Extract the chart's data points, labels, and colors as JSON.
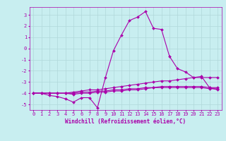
{
  "xlabel": "Windchill (Refroidissement éolien,°C)",
  "bg_color": "#c8eef0",
  "line_color": "#aa00aa",
  "grid_color": "#b0d8da",
  "xlim": [
    -0.5,
    23.5
  ],
  "ylim": [
    -5.5,
    3.7
  ],
  "yticks": [
    -5,
    -4,
    -3,
    -2,
    -1,
    0,
    1,
    2,
    3
  ],
  "xticks": [
    0,
    1,
    2,
    3,
    4,
    5,
    6,
    7,
    8,
    9,
    10,
    11,
    12,
    13,
    14,
    15,
    16,
    17,
    18,
    19,
    20,
    21,
    22,
    23
  ],
  "series": [
    [
      -4.0,
      -4.0,
      -4.2,
      -4.3,
      -4.5,
      -4.8,
      -4.4,
      -4.4,
      -5.3,
      -2.6,
      -0.2,
      1.2,
      2.5,
      2.8,
      3.3,
      1.8,
      1.7,
      -0.7,
      -1.8,
      -2.1,
      -2.6,
      -2.5,
      -3.5,
      -3.7
    ],
    [
      -4.0,
      -4.0,
      -4.0,
      -4.0,
      -4.0,
      -3.9,
      -3.8,
      -3.7,
      -3.7,
      -3.6,
      -3.5,
      -3.4,
      -3.3,
      -3.2,
      -3.1,
      -3.0,
      -2.9,
      -2.9,
      -2.8,
      -2.7,
      -2.6,
      -2.6,
      -2.6,
      -2.6
    ],
    [
      -4.0,
      -4.0,
      -4.0,
      -4.0,
      -4.0,
      -4.0,
      -3.9,
      -3.9,
      -3.8,
      -3.8,
      -3.7,
      -3.7,
      -3.6,
      -3.6,
      -3.5,
      -3.5,
      -3.4,
      -3.4,
      -3.4,
      -3.4,
      -3.4,
      -3.4,
      -3.5,
      -3.5
    ],
    [
      -4.0,
      -4.0,
      -4.0,
      -4.0,
      -4.0,
      -4.1,
      -4.0,
      -4.0,
      -3.9,
      -3.9,
      -3.8,
      -3.8,
      -3.7,
      -3.7,
      -3.6,
      -3.5,
      -3.5,
      -3.5,
      -3.5,
      -3.5,
      -3.5,
      -3.5,
      -3.6,
      -3.6
    ]
  ],
  "marker": "D",
  "marker_size": 2.0,
  "linewidth": 0.8,
  "font_size": 5.5,
  "tick_font_size": 5.0,
  "xlabel_fontsize": 5.5
}
